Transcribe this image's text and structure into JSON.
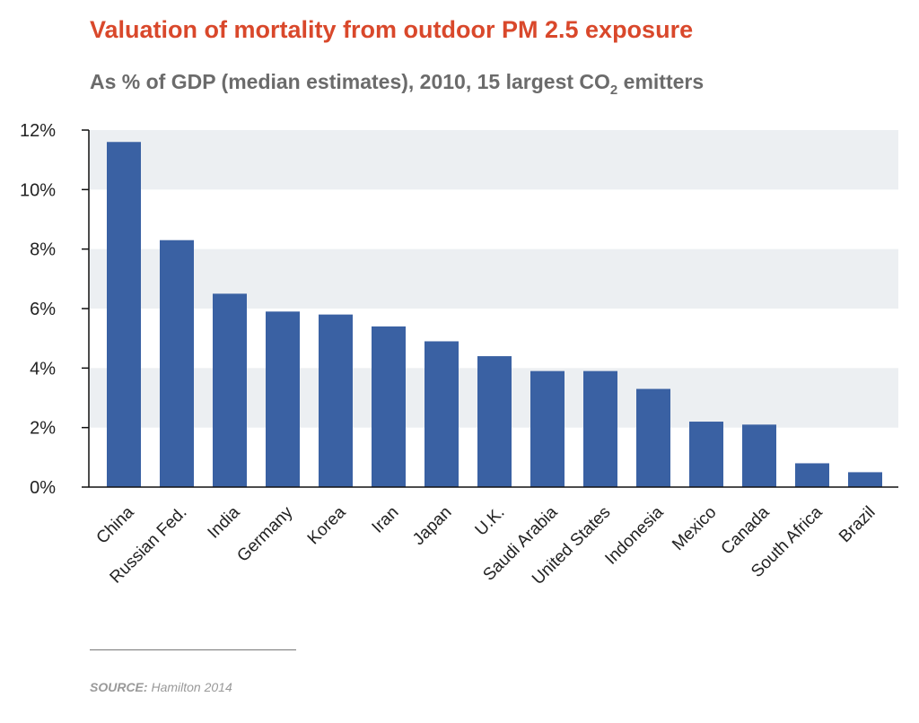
{
  "title": "Valuation of mortality from outdoor PM 2.5 exposure",
  "subtitle": {
    "before_sub": "As % of GDP (median estimates), 2010, 15 largest CO",
    "sub": "2",
    "after_sub": " emitters"
  },
  "source": {
    "label": "SOURCE:",
    "text": " Hamilton 2014"
  },
  "colors": {
    "bar": "#3a61a3",
    "band": "#eceff2",
    "title": "#d9482b"
  },
  "chart_data": {
    "type": "bar",
    "categories": [
      "China",
      "Russian Fed.",
      "India",
      "Germany",
      "Korea",
      "Iran",
      "Japan",
      "U.K.",
      "Saudi Arabia",
      "United States",
      "Indonesia",
      "Mexico",
      "Canada",
      "South Africa",
      "Brazil"
    ],
    "values": [
      11.6,
      8.3,
      6.5,
      5.9,
      5.8,
      5.4,
      4.9,
      4.4,
      3.9,
      3.9,
      3.3,
      2.2,
      2.1,
      0.8,
      0.5
    ],
    "ylim": [
      0,
      12
    ],
    "yticks": [
      0,
      2,
      4,
      6,
      8,
      10,
      12
    ],
    "ytick_labels": [
      "0%",
      "2%",
      "4%",
      "6%",
      "8%",
      "10%",
      "12%"
    ],
    "grid": "alternating horizontal bands",
    "legend": "none"
  }
}
